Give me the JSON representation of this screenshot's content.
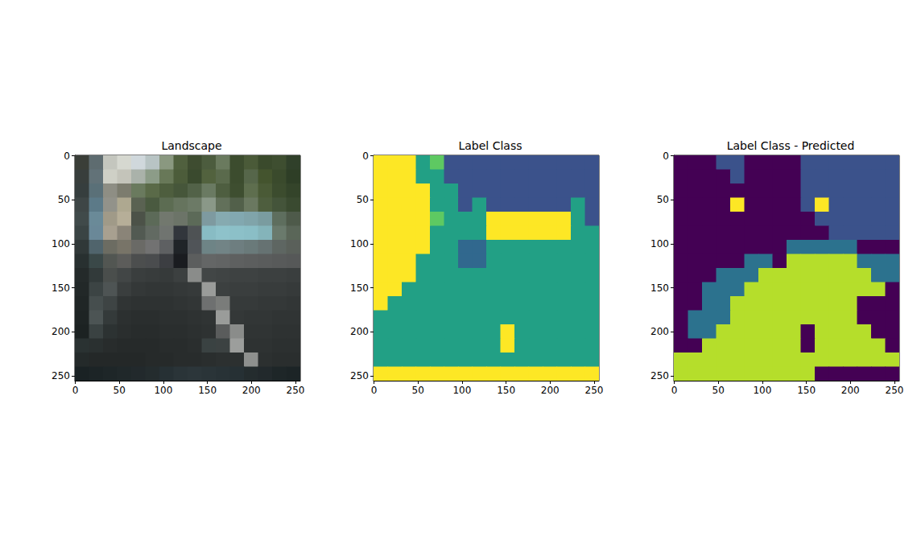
{
  "chart_data": [
    {
      "type": "image",
      "title": "Landscape",
      "xlim": [
        -0.5,
        255.5
      ],
      "ylim": [
        255.5,
        -0.5
      ],
      "xticks": [
        0,
        50,
        100,
        150,
        200,
        250
      ],
      "yticks": [
        0,
        50,
        100,
        150,
        200,
        250
      ],
      "cells": [
        [
          "#3a3e38",
          "#5e6c70",
          "#c4c6be",
          "#d6d8d0",
          "#d0d8dc",
          "#b8c4c4",
          "#8a9880",
          "#50603e",
          "#3e4c30",
          "#4c5c3e",
          "#6a7a5e",
          "#3c4c2e",
          "#4a5a38",
          "#3a4a2c",
          "#3e4e30",
          "#30402a"
        ],
        [
          "#383e3c",
          "#627278",
          "#cfd0c6",
          "#c4c4ba",
          "#aab2aa",
          "#8c9c88",
          "#687858",
          "#4c5c3a",
          "#3a4a2e",
          "#52623e",
          "#5a6a4c",
          "#3c4c2e",
          "#56664a",
          "#44542e",
          "#3a4a2c",
          "#2e3e26"
        ],
        [
          "#363e3e",
          "#5a7078",
          "#8e8e84",
          "#7c7c6e",
          "#6a7a5e",
          "#5a6a48",
          "#4e5e3e",
          "#46563a",
          "#526248",
          "#6a7a62",
          "#4e5e40",
          "#3e4e30",
          "#5e6e4e",
          "#4a5a36",
          "#3c4c2e",
          "#34442a"
        ],
        [
          "#3e4646",
          "#5c7a88",
          "#92928a",
          "#aea890",
          "#5a6252",
          "#4a5a40",
          "#5c6c52",
          "#66745e",
          "#6c7a66",
          "#8a9888",
          "#62705a",
          "#52604a",
          "#6a7860",
          "#4e5e3e",
          "#44543a",
          "#3a4a30"
        ],
        [
          "#404a4a",
          "#6a8a98",
          "#a09a88",
          "#b6ae98",
          "#4c5248",
          "#5c6a58",
          "#72786e",
          "#6c7468",
          "#5c6a58",
          "#7e9aa0",
          "#86aab0",
          "#82a8b0",
          "#80a4aa",
          "#7a9ca0",
          "#5e6e5e",
          "#4e5a4a"
        ],
        [
          "#3a4444",
          "#6a8898",
          "#a8a090",
          "#8a8478",
          "#525a52",
          "#626a62",
          "#707470",
          "#32363c",
          "#4e5254",
          "#88bcc4",
          "#8ec2ca",
          "#8cc0c8",
          "#8abec6",
          "#84b4ba",
          "#6a7a6c",
          "#5a6658"
        ],
        [
          "#303838",
          "#50646c",
          "#6c6c62",
          "#787468",
          "#6a6a66",
          "#727272",
          "#5e6062",
          "#202428",
          "#505458",
          "#6e8486",
          "#728486",
          "#6e7e80",
          "#6a7a7a",
          "#667272",
          "#5e6662",
          "#5a605a"
        ],
        [
          "#283030",
          "#3a4848",
          "#525652",
          "#5c5c5a",
          "#4c4e4e",
          "#4a4c4e",
          "#3c3e42",
          "#1a1c20",
          "#5c5e5e",
          "#646666",
          "#626464",
          "#5e6060",
          "#5c5e5e",
          "#5a5c5c",
          "#585a5a",
          "#565858"
        ],
        [
          "#242a2a",
          "#323a3a",
          "#4a4e4c",
          "#424646",
          "#3a3e3e",
          "#383c3c",
          "#363a3a",
          "#3c4040",
          "#8a8c8a",
          "#424646",
          "#404444",
          "#3e4242",
          "#3e4242",
          "#3c4040",
          "#3c4040",
          "#3a3e3e"
        ],
        [
          "#222828",
          "#3c4444",
          "#4e5454",
          "#3a3e3e",
          "#343838",
          "#323636",
          "#323636",
          "#343838",
          "#363a3a",
          "#9a9c9a",
          "#3c4040",
          "#3a3e3e",
          "#3a3e3e",
          "#383c3c",
          "#383c3c",
          "#363a3a"
        ],
        [
          "#202626",
          "#464e4e",
          "#3e4444",
          "#303434",
          "#2e3232",
          "#2e3232",
          "#2e3232",
          "#303434",
          "#323636",
          "#6e7070",
          "#7a7c7a",
          "#363a3a",
          "#363a3a",
          "#343838",
          "#343838",
          "#323636"
        ],
        [
          "#1e2424",
          "#4c5454",
          "#343a3a",
          "#2c3030",
          "#2a2e2e",
          "#2a2e2e",
          "#2c3030",
          "#2c3030",
          "#2e3232",
          "#303434",
          "#9a9c9a",
          "#343838",
          "#323636",
          "#323636",
          "#303434",
          "#303434"
        ],
        [
          "#1c2222",
          "#3a4242",
          "#2c3232",
          "#2a2e2e",
          "#282c2c",
          "#282c2c",
          "#2a2e2e",
          "#2a2e2e",
          "#2c3030",
          "#2e3232",
          "#5a5c5c",
          "#8a8c8a",
          "#303434",
          "#303434",
          "#2e3232",
          "#2e3232"
        ],
        [
          "#2a3232",
          "#2a3030",
          "#282c2c",
          "#262a2a",
          "#262a2a",
          "#262a2a",
          "#282c2c",
          "#282c2c",
          "#2a2e2e",
          "#3a4242",
          "#3c4242",
          "#9c9e9c",
          "#2e3232",
          "#2e3232",
          "#2c3030",
          "#2c3030"
        ],
        [
          "#242a2a",
          "#242828",
          "#242828",
          "#242828",
          "#242828",
          "#262a2a",
          "#262a2a",
          "#282c2c",
          "#282c2c",
          "#2a2e2e",
          "#2c3030",
          "#2c3030",
          "#8e908e",
          "#2c3030",
          "#2a2e2e",
          "#2a2e2e"
        ],
        [
          "#1a2224",
          "#1c2426",
          "#1e2628",
          "#20282a",
          "#22292c",
          "#242c2e",
          "#263034",
          "#2a3438",
          "#2c363a",
          "#2a3438",
          "#283236",
          "#263034",
          "#242c2e",
          "#22292c",
          "#1e2628",
          "#1c2426"
        ]
      ]
    },
    {
      "type": "label_map",
      "title": "Label Class",
      "xlim": [
        -0.5,
        255.5
      ],
      "ylim": [
        255.5,
        -0.5
      ],
      "xticks": [
        0,
        50,
        100,
        150,
        200,
        250
      ],
      "yticks": [
        0,
        50,
        100,
        150,
        200,
        250
      ],
      "colors": [
        "#fde725",
        "#22a085",
        "#3b528b",
        "#5ec962",
        "#31688e"
      ],
      "cells": [
        [
          0,
          0,
          0,
          1,
          3,
          2,
          2,
          2,
          2,
          2,
          2,
          2,
          2,
          2,
          2,
          2
        ],
        [
          0,
          0,
          0,
          1,
          1,
          2,
          2,
          2,
          2,
          2,
          2,
          2,
          2,
          2,
          2,
          2
        ],
        [
          0,
          0,
          0,
          0,
          1,
          1,
          2,
          2,
          2,
          2,
          2,
          2,
          2,
          2,
          2,
          2
        ],
        [
          0,
          0,
          0,
          0,
          1,
          1,
          2,
          1,
          2,
          2,
          2,
          2,
          2,
          2,
          1,
          2
        ],
        [
          0,
          0,
          0,
          0,
          3,
          1,
          1,
          1,
          0,
          0,
          0,
          0,
          0,
          0,
          1,
          2
        ],
        [
          0,
          0,
          0,
          0,
          1,
          1,
          1,
          1,
          0,
          0,
          0,
          0,
          0,
          0,
          1,
          1
        ],
        [
          0,
          0,
          0,
          0,
          1,
          1,
          4,
          4,
          1,
          1,
          1,
          1,
          1,
          1,
          1,
          1
        ],
        [
          0,
          0,
          0,
          1,
          1,
          1,
          4,
          4,
          1,
          1,
          1,
          1,
          1,
          1,
          1,
          1
        ],
        [
          0,
          0,
          0,
          1,
          1,
          1,
          1,
          1,
          1,
          1,
          1,
          1,
          1,
          1,
          1,
          1
        ],
        [
          0,
          0,
          1,
          1,
          1,
          1,
          1,
          1,
          1,
          1,
          1,
          1,
          1,
          1,
          1,
          1
        ],
        [
          0,
          1,
          1,
          1,
          1,
          1,
          1,
          1,
          1,
          1,
          1,
          1,
          1,
          1,
          1,
          1
        ],
        [
          1,
          1,
          1,
          1,
          1,
          1,
          1,
          1,
          1,
          1,
          1,
          1,
          1,
          1,
          1,
          1
        ],
        [
          1,
          1,
          1,
          1,
          1,
          1,
          1,
          1,
          1,
          0,
          1,
          1,
          1,
          1,
          1,
          1
        ],
        [
          1,
          1,
          1,
          1,
          1,
          1,
          1,
          1,
          1,
          0,
          1,
          1,
          1,
          1,
          1,
          1
        ],
        [
          1,
          1,
          1,
          1,
          1,
          1,
          1,
          1,
          1,
          1,
          1,
          1,
          1,
          1,
          1,
          1
        ],
        [
          0,
          0,
          0,
          0,
          0,
          0,
          0,
          0,
          0,
          0,
          0,
          0,
          0,
          0,
          0,
          0
        ]
      ]
    },
    {
      "type": "label_map",
      "title": "Label Class - Predicted",
      "xlim": [
        -0.5,
        255.5
      ],
      "ylim": [
        255.5,
        -0.5
      ],
      "xticks": [
        0,
        50,
        100,
        150,
        200,
        250
      ],
      "yticks": [
        0,
        50,
        100,
        150,
        200,
        250
      ],
      "colors": [
        "#440154",
        "#3b528b",
        "#2c728e",
        "#b5de2b",
        "#fde725"
      ],
      "cells": [
        [
          0,
          0,
          0,
          1,
          1,
          0,
          0,
          0,
          0,
          1,
          1,
          1,
          1,
          1,
          1,
          1
        ],
        [
          0,
          0,
          0,
          0,
          1,
          0,
          0,
          0,
          0,
          1,
          1,
          1,
          1,
          1,
          1,
          1
        ],
        [
          0,
          0,
          0,
          0,
          0,
          0,
          0,
          0,
          0,
          1,
          1,
          1,
          1,
          1,
          1,
          1
        ],
        [
          0,
          0,
          0,
          0,
          4,
          0,
          0,
          0,
          0,
          1,
          4,
          1,
          1,
          1,
          1,
          1
        ],
        [
          0,
          0,
          0,
          0,
          0,
          0,
          0,
          0,
          0,
          0,
          1,
          1,
          1,
          1,
          1,
          1
        ],
        [
          0,
          0,
          0,
          0,
          0,
          0,
          0,
          0,
          0,
          0,
          0,
          1,
          1,
          1,
          1,
          1
        ],
        [
          0,
          0,
          0,
          0,
          0,
          0,
          0,
          0,
          2,
          2,
          2,
          2,
          2,
          0,
          0,
          0
        ],
        [
          0,
          0,
          0,
          0,
          0,
          2,
          2,
          0,
          3,
          3,
          3,
          3,
          3,
          2,
          2,
          2
        ],
        [
          0,
          0,
          0,
          2,
          2,
          2,
          3,
          3,
          3,
          3,
          3,
          3,
          3,
          3,
          2,
          2
        ],
        [
          0,
          0,
          2,
          2,
          2,
          3,
          3,
          3,
          3,
          3,
          3,
          3,
          3,
          3,
          3,
          0
        ],
        [
          0,
          0,
          2,
          2,
          3,
          3,
          3,
          3,
          3,
          3,
          3,
          3,
          3,
          0,
          0,
          0
        ],
        [
          0,
          2,
          2,
          2,
          3,
          3,
          3,
          3,
          3,
          3,
          3,
          3,
          3,
          0,
          0,
          0
        ],
        [
          0,
          2,
          2,
          3,
          3,
          3,
          3,
          3,
          3,
          0,
          3,
          3,
          3,
          3,
          0,
          0
        ],
        [
          0,
          0,
          3,
          3,
          3,
          3,
          3,
          3,
          3,
          0,
          3,
          3,
          3,
          3,
          3,
          0
        ],
        [
          3,
          3,
          3,
          3,
          3,
          3,
          3,
          3,
          3,
          3,
          3,
          3,
          3,
          3,
          3,
          3
        ],
        [
          3,
          3,
          3,
          3,
          3,
          3,
          3,
          3,
          3,
          3,
          0,
          0,
          0,
          0,
          0,
          0
        ]
      ]
    }
  ]
}
